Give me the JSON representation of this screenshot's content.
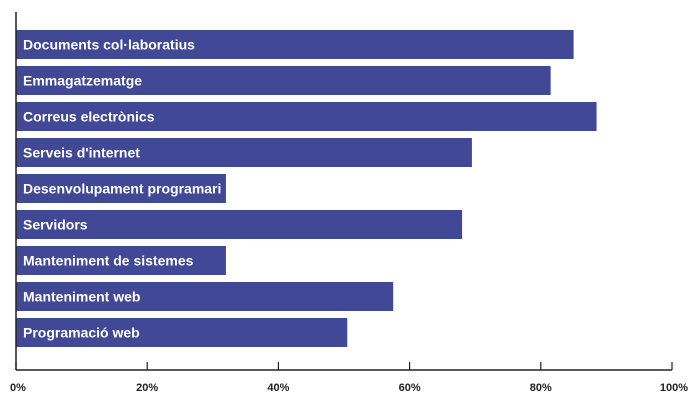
{
  "chart_data": {
    "type": "bar",
    "orientation": "horizontal",
    "title": "",
    "xlabel": "",
    "ylabel": "",
    "categories": [
      "Documents col·laboratius",
      "Emmagatzematge",
      "Correus electrònics",
      "Serveis d'internet",
      "Desenvolupament programari",
      "Servidors",
      "Manteniment de sistemes",
      "Manteniment web",
      "Programació web"
    ],
    "values": [
      85,
      81.5,
      88.5,
      69.5,
      32,
      68,
      32,
      57.5,
      50.5
    ],
    "xlim": [
      0,
      100
    ],
    "xticks": [
      0,
      20,
      40,
      60,
      80,
      100
    ],
    "xtick_labels": [
      "0%",
      "20%",
      "40%",
      "60%",
      "80%",
      "100%"
    ],
    "grid": false,
    "legend": "none",
    "colors": {
      "bar": "#414896",
      "bar_text": "#ffffff",
      "axis": "#222222"
    }
  }
}
